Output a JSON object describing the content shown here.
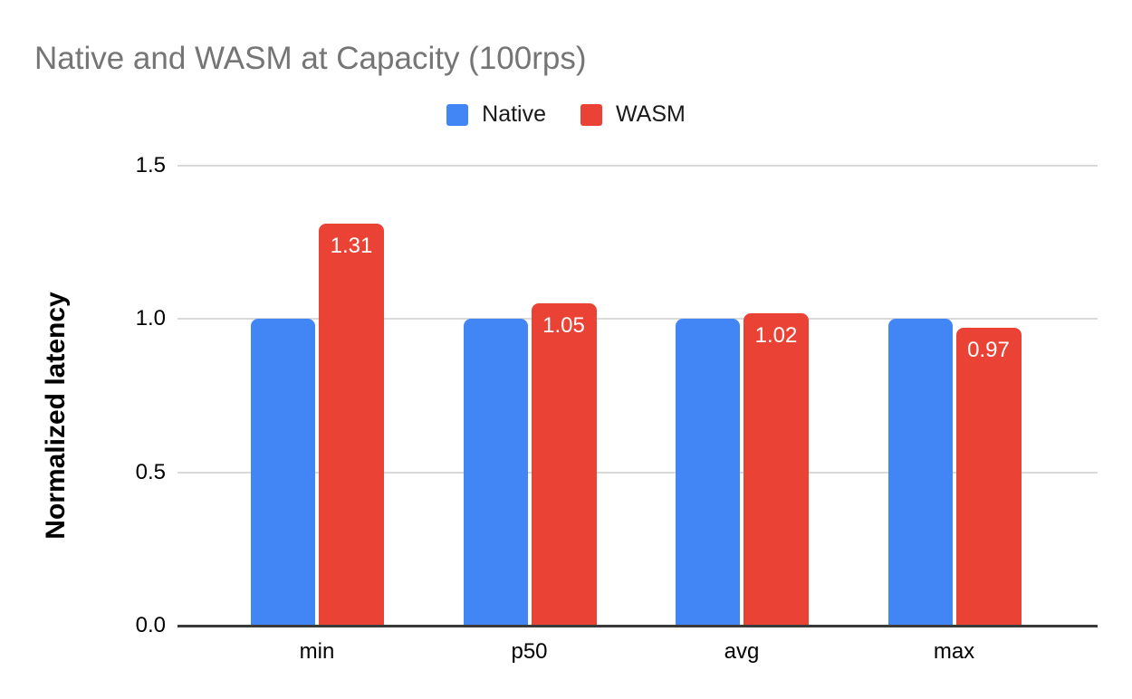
{
  "title": "Native and WASM at Capacity (100rps)",
  "colors": {
    "native": "#4285F4",
    "wasm": "#EA4335",
    "title_text": "#757575",
    "gridline": "#d9d9d9",
    "axis_line": "#3a3a3a",
    "value_label_text": "#ffffff",
    "background": "#ffffff"
  },
  "legend": {
    "position": "top-center",
    "items": [
      {
        "label": "Native",
        "color": "#4285F4"
      },
      {
        "label": "WASM",
        "color": "#EA4335"
      }
    ]
  },
  "chart_data": {
    "type": "bar",
    "title": "Native and WASM at Capacity (100rps)",
    "categories": [
      "min",
      "p50",
      "avg",
      "max"
    ],
    "series": [
      {
        "name": "Native",
        "color": "#4285F4",
        "values": [
          1.0,
          1.0,
          1.0,
          1.0
        ],
        "show_value_labels": false
      },
      {
        "name": "WASM",
        "color": "#EA4335",
        "values": [
          1.31,
          1.05,
          1.02,
          0.97
        ],
        "show_value_labels": true,
        "value_labels": [
          "1.31",
          "1.05",
          "1.02",
          "0.97"
        ]
      }
    ],
    "xlabel": "",
    "ylabel": "Normalized latency",
    "ylim": [
      0,
      1.5
    ],
    "yticks": [
      0.0,
      0.5,
      1.0,
      1.5
    ],
    "ytick_labels": [
      "0.0",
      "0.5",
      "1.0",
      "1.5"
    ],
    "grid": true,
    "legend_position": "top"
  }
}
